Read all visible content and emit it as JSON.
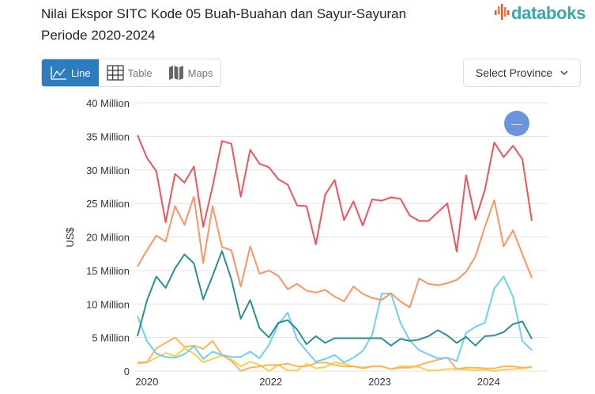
{
  "header": {
    "title_line1": "Nilai Ekspor SITC Kode 05 Buah-Buahan dan Sayur-Sayuran",
    "title_line2": "Periode 2020-2024",
    "logo": "databoks"
  },
  "tabs": [
    {
      "label": "Line",
      "icon": "line-chart-icon",
      "active": true
    },
    {
      "label": "Table",
      "icon": "table-icon",
      "active": false
    },
    {
      "label": "Maps",
      "icon": "map-icon",
      "active": false
    }
  ],
  "province_select": {
    "label": "Select Province"
  },
  "zoom_button": {
    "label": "—"
  },
  "chart_data": {
    "type": "line",
    "title": "",
    "ylabel": "US$",
    "ylim": [
      0,
      40
    ],
    "yticks": [
      {
        "v": 0,
        "label": "0"
      },
      {
        "v": 5,
        "label": "5 Million"
      },
      {
        "v": 10,
        "label": "10 Million"
      },
      {
        "v": 15,
        "label": "15 Million"
      },
      {
        "v": 20,
        "label": "20 Million"
      },
      {
        "v": 25,
        "label": "25 Million"
      },
      {
        "v": 30,
        "label": "30 Million"
      },
      {
        "v": 35,
        "label": "35 Million"
      },
      {
        "v": 40,
        "label": "40 Million"
      }
    ],
    "xticks": [
      {
        "i": 1,
        "label": "2020"
      },
      {
        "i": 14.2,
        "label": "2022"
      },
      {
        "i": 25.8,
        "label": "2023"
      },
      {
        "i": 37.4,
        "label": "2024"
      }
    ],
    "grid": true,
    "series": [
      {
        "color": "#f0545a",
        "values": [
          35.2,
          31.8,
          29.8,
          22.2,
          29.4,
          28.1,
          30.5,
          21.5,
          27.5,
          34.3,
          33.9,
          26.0,
          33.0,
          30.9,
          30.4,
          28.6,
          27.8,
          24.7,
          24.6,
          18.9,
          26.3,
          28.5,
          22.5,
          25.3,
          21.7,
          25.6,
          25.4,
          25.9,
          25.7,
          23.2,
          22.4,
          22.4,
          23.7,
          25.0,
          17.8,
          29.2,
          22.6,
          27.0,
          34.1,
          31.9,
          33.6,
          31.6,
          22.4
        ]
      },
      {
        "color": "#ff9361",
        "values": [
          15.6,
          18.0,
          20.2,
          19.3,
          24.6,
          21.8,
          26.0,
          16.1,
          24.6,
          18.5,
          18.0,
          12.6,
          18.6,
          14.5,
          15.0,
          14.2,
          12.2,
          13.0,
          12.0,
          11.7,
          12.1,
          11.1,
          10.4,
          12.6,
          11.5,
          10.9,
          10.6,
          11.6,
          10.4,
          9.5,
          13.8,
          13.0,
          12.8,
          13.1,
          13.6,
          14.8,
          17.1,
          21.5,
          25.5,
          18.6,
          21.0,
          17.4,
          13.9
        ]
      },
      {
        "color": "#2a9090",
        "values": [
          5.2,
          10.5,
          14.1,
          12.4,
          15.3,
          17.4,
          16.1,
          10.7,
          14.2,
          17.9,
          13.7,
          7.8,
          10.6,
          6.4,
          5.0,
          7.2,
          7.6,
          6.2,
          4.0,
          5.2,
          4.2,
          4.9,
          4.9,
          4.9,
          4.9,
          4.9,
          4.9,
          3.8,
          4.8,
          4.5,
          4.7,
          5.2,
          6.1,
          5.3,
          4.2,
          5.1,
          3.8,
          5.2,
          5.3,
          5.8,
          7.0,
          7.4,
          4.8
        ]
      },
      {
        "color": "#6dd0f2",
        "values": [
          8.2,
          4.5,
          2.6,
          2.1,
          2.0,
          2.5,
          3.7,
          1.8,
          2.9,
          2.4,
          2.1,
          2.1,
          2.9,
          1.9,
          3.9,
          7.0,
          8.7,
          4.7,
          3.0,
          1.4,
          1.8,
          2.4,
          1.3,
          2.0,
          3.0,
          5.4,
          11.5,
          11.6,
          7.2,
          4.6,
          3.1,
          2.5,
          1.9,
          2.0,
          1.5,
          5.7,
          6.6,
          7.2,
          12.3,
          14.1,
          11.1,
          4.5,
          3.1
        ]
      },
      {
        "color": "#ffb35a",
        "values": [
          1.3,
          1.3,
          3.4,
          4.2,
          5.0,
          3.6,
          3.8,
          3.3,
          4.5,
          2.4,
          1.5,
          0,
          0.5,
          0.7,
          0.9,
          0.9,
          1.1,
          0.7,
          0.7,
          1.2,
          1.3,
          0.9,
          0.7,
          0.7,
          0.5,
          0.7,
          0.7,
          0.3,
          0.5,
          0.5,
          0.9,
          1.3,
          1.7,
          2.0,
          0.3,
          0.5,
          0.5,
          0.4,
          0.4,
          0.7,
          0.7,
          0.5,
          0.6
        ]
      },
      {
        "color": "#ffcf4a",
        "values": [
          1.1,
          1.3,
          2.0,
          2.7,
          2.2,
          3.4,
          2.6,
          1.3,
          1.8,
          2.3,
          1.7,
          0.7,
          1.4,
          0.9,
          0,
          0.9,
          0.1,
          0.1,
          1.1,
          0.4,
          0.6,
          1.3,
          1.1,
          0.7,
          0.4,
          0.7,
          0.7,
          0.3,
          0.7,
          0.7,
          0.6,
          0.1,
          0.1,
          0.3,
          0.3,
          0.2,
          0.1,
          0.2,
          0,
          0.2,
          0.3,
          0.4,
          0.6
        ]
      }
    ]
  }
}
